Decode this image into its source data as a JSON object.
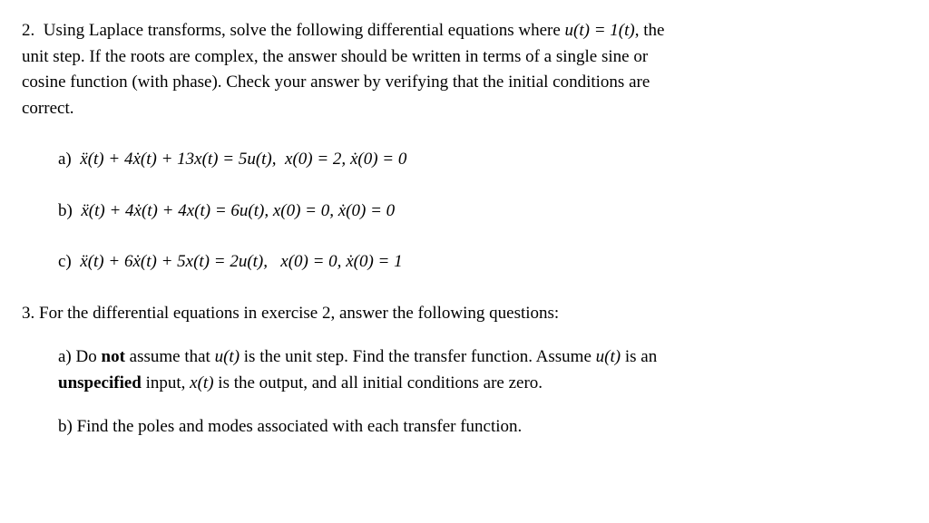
{
  "page": {
    "background_color": "#ffffff",
    "text_color": "#000000",
    "font_family": "Times New Roman",
    "base_font_size": 19
  },
  "problem2": {
    "number": "2.",
    "intro_l1": "Using Laplace transforms, solve the following differential equations where ",
    "intro_eq": "u(t) = 1(t)",
    "intro_l1_end": ", the",
    "intro_l2": "unit step.  If the roots are complex, the answer should be written in terms of a single sine or",
    "intro_l3": "cosine function (with phase).  Check your answer by verifying that the initial conditions are",
    "intro_l4": "correct.",
    "items": [
      {
        "label": "a)",
        "eq_pre": "ẍ(t) + 4ẋ(t) + 13x(t) = 5u(t),",
        "ic1": "x(0) = 2,",
        "ic2": "ẋ(0) = 0"
      },
      {
        "label": "b)",
        "eq_pre": "ẍ(t) + 4ẋ(t) + 4x(t) = 6u(t),",
        "ic1": "x(0) = 0,",
        "ic2": "ẋ(0) = 0"
      },
      {
        "label": "c)",
        "eq_pre": "ẍ(t) + 6ẋ(t) + 5x(t) = 2u(t),",
        "ic1": "x(0) = 0,",
        "ic2": "ẋ(0) = 1"
      }
    ]
  },
  "problem3": {
    "number": "3.",
    "intro": "For the differential equations in exercise 2, answer the following questions:",
    "items": [
      {
        "label": "a)",
        "t1": "Do ",
        "bold1": "not",
        "t2": " assume that ",
        "m1": "u(t)",
        "t3": " is the unit step. Find the transfer function. Assume ",
        "m2": "u(t)",
        "t4": " is an ",
        "bold2": "unspecified",
        "t5": " input, ",
        "m3": "x(t)",
        "t6": " is the output, and all initial conditions are zero."
      },
      {
        "label": "b)",
        "text": "Find the poles and modes associated with each transfer function."
      }
    ]
  }
}
